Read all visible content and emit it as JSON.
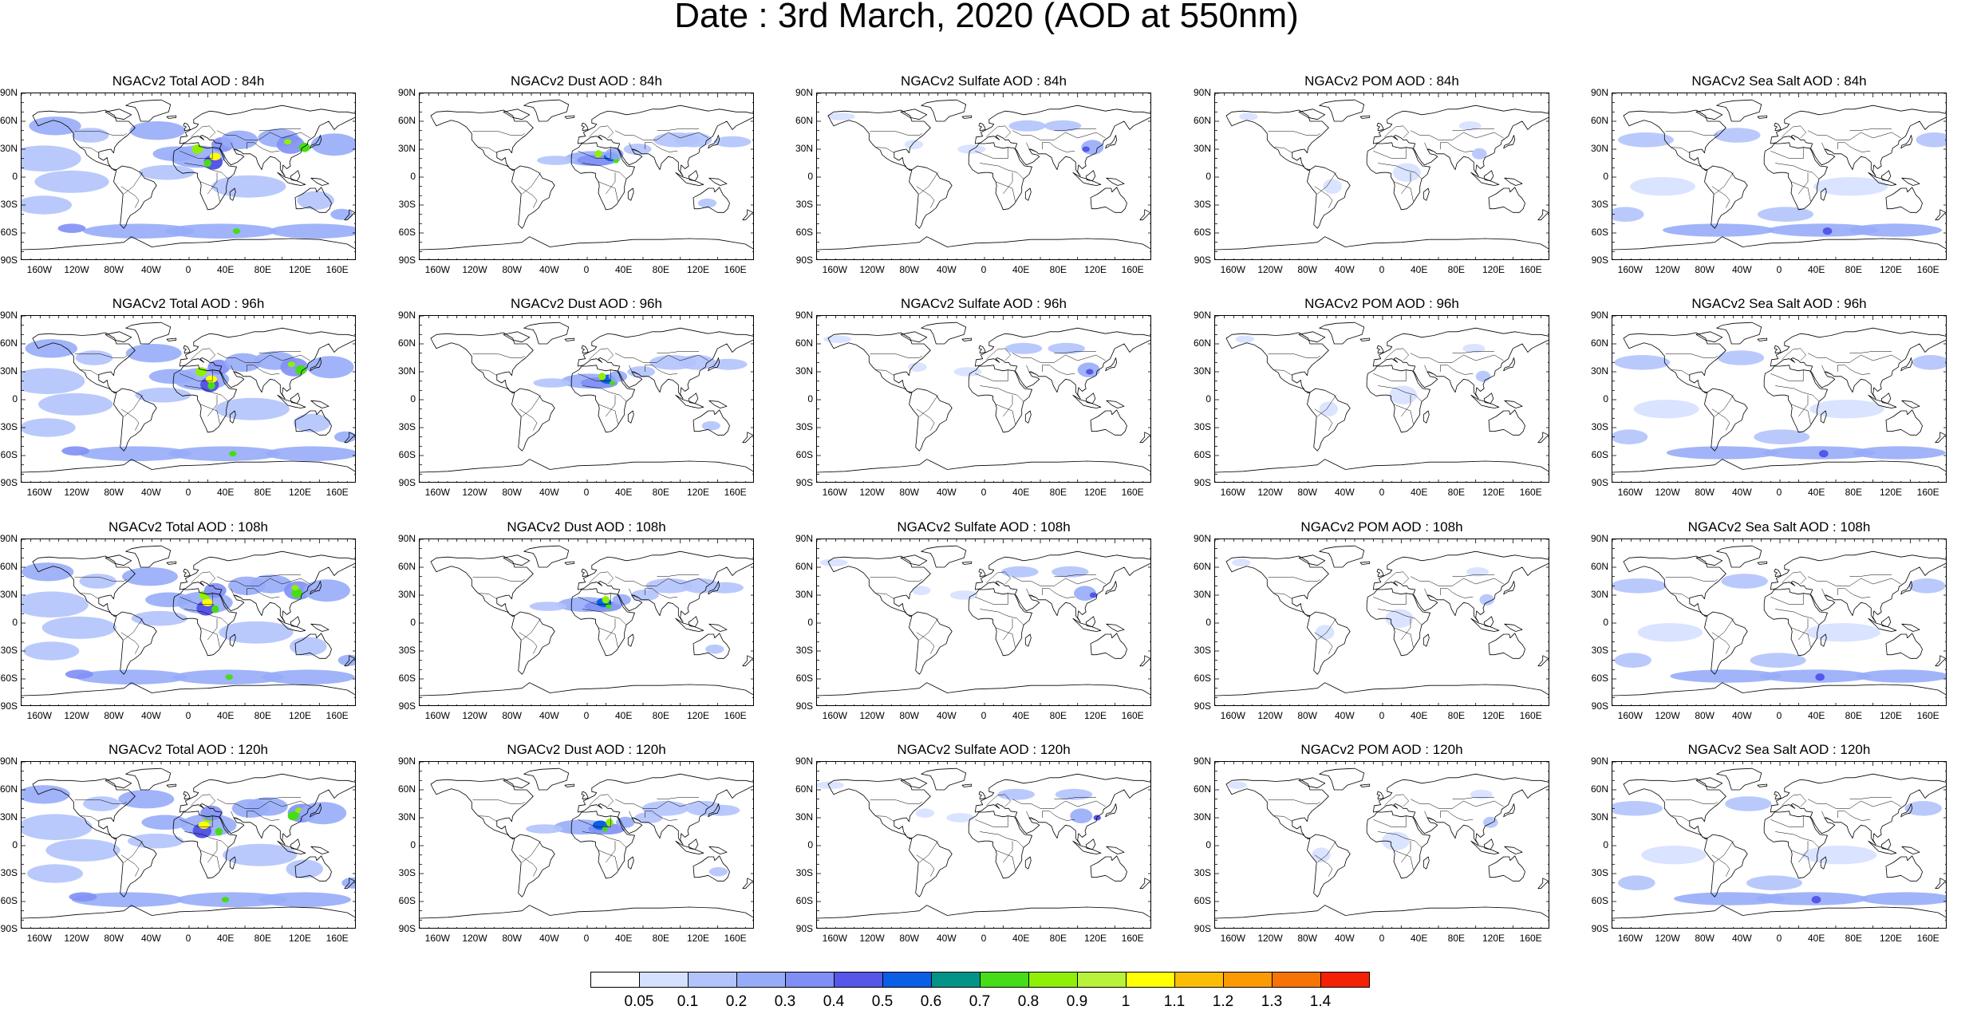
{
  "title": "Date : 3rd March, 2020 (AOD at 550nm)",
  "lat_labels": [
    "90N",
    "60N",
    "30N",
    "0",
    "30S",
    "60S",
    "90S"
  ],
  "lon_labels": [
    "160W",
    "120W",
    "80W",
    "40W",
    "0",
    "40E",
    "80E",
    "120E",
    "160E"
  ],
  "species": [
    {
      "key": "total",
      "borders": false
    },
    {
      "key": "dust",
      "borders": false
    },
    {
      "key": "sulfate",
      "borders": true
    },
    {
      "key": "pom",
      "borders": true
    },
    {
      "key": "seasalt",
      "borders": true
    }
  ],
  "panels": [
    {
      "title": "NGACv2 Total AOD : 84h"
    },
    {
      "title": "NGACv2 Dust AOD : 84h"
    },
    {
      "title": "NGACv2 Sulfate AOD : 84h"
    },
    {
      "title": "NGACv2 POM AOD : 84h"
    },
    {
      "title": "NGACv2 Sea Salt AOD : 84h"
    },
    {
      "title": "NGACv2 Total AOD : 96h"
    },
    {
      "title": "NGACv2 Dust AOD : 96h"
    },
    {
      "title": "NGACv2 Sulfate AOD : 96h"
    },
    {
      "title": "NGACv2 POM AOD : 96h"
    },
    {
      "title": "NGACv2 Sea Salt AOD : 96h"
    },
    {
      "title": "NGACv2 Total AOD : 108h"
    },
    {
      "title": "NGACv2 Dust AOD : 108h"
    },
    {
      "title": "NGACv2 Sulfate AOD : 108h"
    },
    {
      "title": "NGACv2 POM AOD : 108h"
    },
    {
      "title": "NGACv2 Sea Salt AOD : 108h"
    },
    {
      "title": "NGACv2 Total AOD : 120h"
    },
    {
      "title": "NGACv2 Dust AOD : 120h"
    },
    {
      "title": "NGACv2 Sulfate AOD : 120h"
    },
    {
      "title": "NGACv2 POM AOD : 120h"
    },
    {
      "title": "NGACv2 Sea Salt  AOD : 120h"
    }
  ],
  "colorbar": {
    "labels": [
      "0.05",
      "0.1",
      "0.2",
      "0.3",
      "0.4",
      "0.5",
      "0.6",
      "0.7",
      "0.8",
      "0.9",
      "1",
      "1.1",
      "1.2",
      "1.3",
      "1.4"
    ],
    "colors": [
      "#ffffff",
      "#d6e0ff",
      "#b3c3fc",
      "#97acf8",
      "#7f8ff5",
      "#5656e8",
      "#0a5fe6",
      "#039387",
      "#46dc17",
      "#8fef07",
      "#b8f23a",
      "#ffff05",
      "#fbbd05",
      "#fb9a05",
      "#f77305",
      "#f52105"
    ]
  }
}
